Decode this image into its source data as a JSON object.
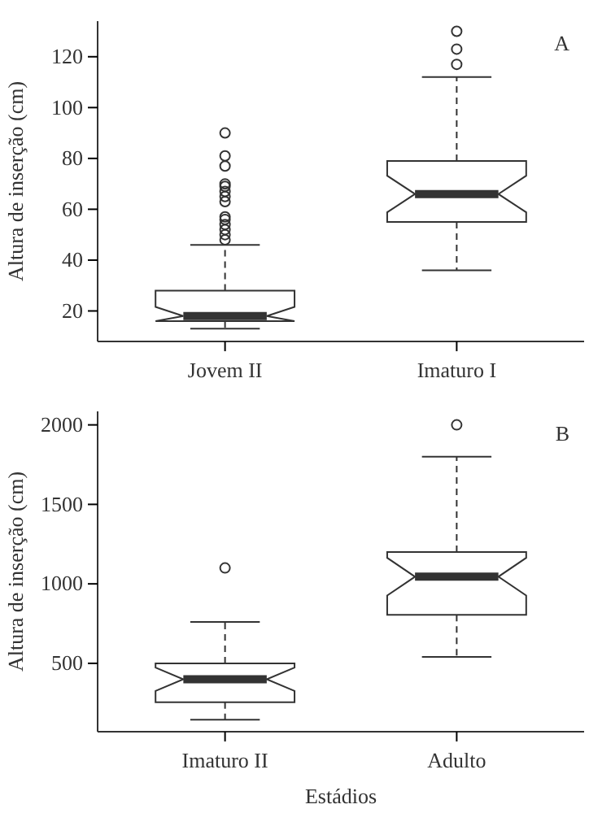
{
  "chart_data": [
    {
      "type": "box",
      "categories": [
        "Jovem II",
        "Imaturo I"
      ],
      "ylabel": "Altura de inserção (cm)",
      "ylim": [
        8,
        134
      ],
      "yticks": [
        20,
        40,
        60,
        80,
        100,
        120
      ],
      "annotations": [
        "A"
      ],
      "boxes": [
        {
          "low": 13,
          "q1": 16,
          "median": 18,
          "q3": 28,
          "high": 46,
          "outliers": [
            48,
            50,
            52,
            54,
            56,
            57,
            63,
            65,
            67,
            69,
            70,
            77,
            81,
            90
          ]
        },
        {
          "low": 36,
          "q1": 55,
          "median": 66,
          "q3": 79,
          "high": 112,
          "outliers": [
            117,
            123,
            130
          ]
        }
      ]
    },
    {
      "type": "box",
      "categories": [
        "Imaturo II",
        "Adulto"
      ],
      "xlabel": "Estádios",
      "ylabel": "Altura de inserção (cm)",
      "ylim": [
        70,
        2085
      ],
      "yticks": [
        500,
        1000,
        1500,
        2000
      ],
      "annotations": [
        "B"
      ],
      "boxes": [
        {
          "low": 145,
          "q1": 255,
          "median": 400,
          "q3": 500,
          "high": 760,
          "outliers": [
            1100
          ]
        },
        {
          "low": 540,
          "q1": 805,
          "median": 1045,
          "q3": 1200,
          "high": 1800,
          "outliers": [
            2000
          ]
        }
      ]
    }
  ]
}
